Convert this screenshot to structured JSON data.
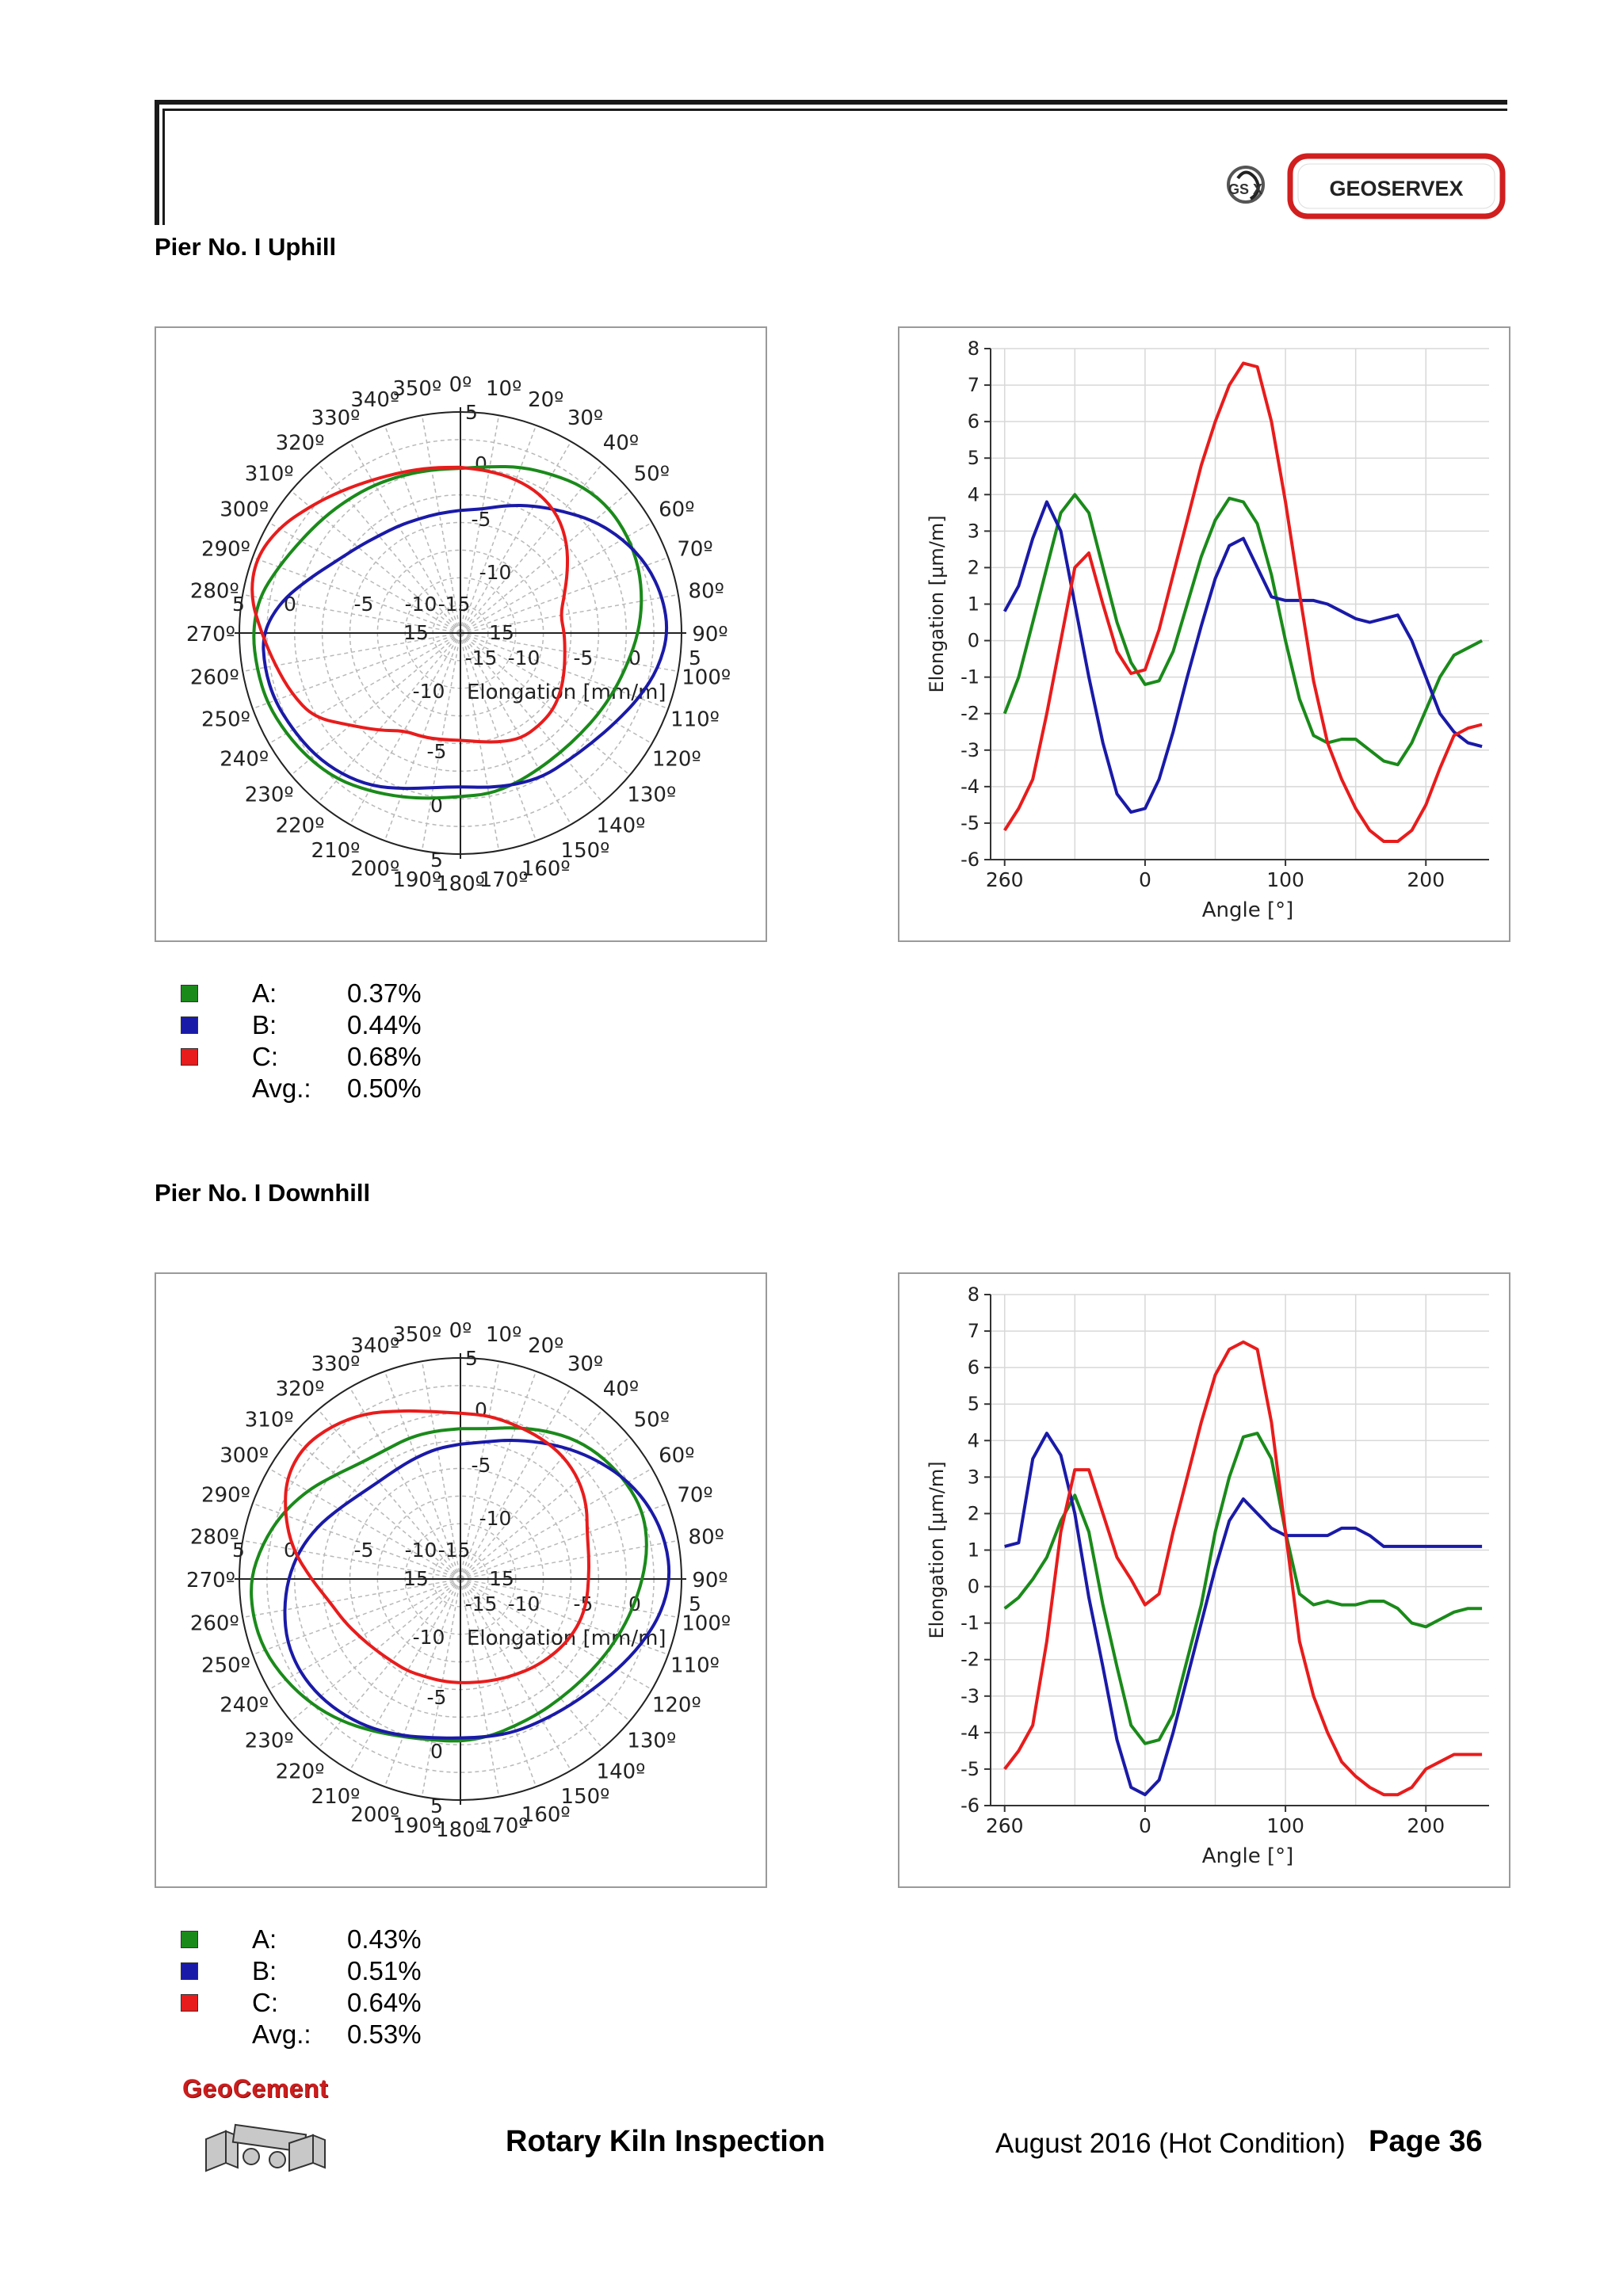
{
  "header": {
    "logo": {
      "mark_text": "GS X",
      "brand": "GEOSERVEX",
      "mark_icon": "geoservex-mark-icon",
      "border_color": "#d11f1f"
    }
  },
  "sections": [
    {
      "title": "Pier No. I Uphill",
      "legend": [
        {
          "label": "A:",
          "value": "0.37%",
          "color": "#1a8a1a"
        },
        {
          "label": "B:",
          "value": "0.44%",
          "color": "#1a1aa8"
        },
        {
          "label": "C:",
          "value": "0.68%",
          "color": "#e81c1c"
        },
        {
          "label": "Avg.:",
          "value": "0.50%",
          "color": ""
        }
      ]
    },
    {
      "title": "Pier No. I Downhill",
      "legend": [
        {
          "label": "A:",
          "value": "0.43%",
          "color": "#1a8a1a"
        },
        {
          "label": "B:",
          "value": "0.51%",
          "color": "#1a1aa8"
        },
        {
          "label": "C:",
          "value": "0.64%",
          "color": "#e81c1c"
        },
        {
          "label": "Avg.:",
          "value": "0.53%",
          "color": ""
        }
      ]
    }
  ],
  "chart_data": [
    {
      "type": "polar",
      "title": "Pier No. I Uphill - polar",
      "axis_label": "Elongation [mm/m]",
      "radial_ticks": [
        "15",
        "-15",
        "-10",
        "-5",
        "0",
        "5"
      ],
      "radial_range": [
        -15,
        5
      ],
      "angle_ticks_deg": [
        0,
        10,
        20,
        30,
        40,
        50,
        60,
        70,
        80,
        90,
        100,
        110,
        120,
        130,
        140,
        150,
        160,
        170,
        180,
        190,
        200,
        210,
        220,
        230,
        240,
        250,
        260,
        270,
        280,
        290,
        300,
        310,
        320,
        330,
        340,
        350
      ],
      "series": [
        {
          "name": "A",
          "color": "#1a8a1a",
          "r": [
            -0.1,
            0.3,
            1.0,
            1.6,
            2.3,
            2.6,
            2.5,
            2.2,
            1.7,
            1.1,
            0.4,
            -0.1,
            -0.5,
            -0.8,
            -0.9,
            -0.8,
            -0.5,
            -0.2,
            -0.2,
            0.2,
            0.8,
            1.5,
            2.3,
            2.8,
            3.2,
            3.6,
            3.7,
            3.8,
            3.5,
            2.5,
            1.7,
            1.2,
            0.8,
            0.5,
            0.2,
            0.0
          ]
        },
        {
          "name": "B",
          "color": "#1a1aa8",
          "r": [
            -3.9,
            -3.6,
            -2.7,
            -1.7,
            -0.6,
            0.8,
            2.0,
            3.0,
            3.6,
            3.8,
            3.2,
            2.2,
            1.2,
            0.5,
            0.1,
            0.0,
            -0.4,
            -0.8,
            -1.1,
            -0.8,
            0.0,
            1.0,
            1.7,
            2.2,
            2.5,
            2.9,
            3.0,
            2.9,
            1.5,
            -0.5,
            -2.0,
            -2.9,
            -3.5,
            -3.8,
            -4.0,
            -4.0
          ]
        },
        {
          "name": "C",
          "color": "#e81c1c",
          "r": [
            0.0,
            -0.1,
            -0.2,
            -0.5,
            -1.2,
            -2.4,
            -3.8,
            -5.0,
            -5.8,
            -5.6,
            -5.4,
            -5.0,
            -4.5,
            -4.1,
            -4.0,
            -4.0,
            -4.5,
            -5.0,
            -5.3,
            -5.2,
            -5.0,
            -4.8,
            -3.5,
            -2.0,
            0.3,
            1.2,
            2.0,
            3.0,
            4.3,
            4.7,
            4.0,
            2.8,
            1.8,
            1.0,
            0.5,
            0.2
          ]
        }
      ]
    },
    {
      "type": "line",
      "title": "Pier No. I Uphill - linear",
      "xlabel": "Angle [°]",
      "ylabel": "Elongation [µm/m]",
      "x_ticks": [
        "260",
        "0",
        "100",
        "200"
      ],
      "y_ticks": [
        8,
        7,
        6,
        5,
        4,
        3,
        2,
        1,
        0,
        -1,
        -2,
        -3,
        -4,
        -5,
        -6
      ],
      "ylim": [
        -6,
        8
      ],
      "x_unwrapped": [
        -100,
        -90,
        -80,
        -70,
        -60,
        -50,
        -40,
        -30,
        -20,
        -10,
        0,
        10,
        20,
        30,
        40,
        50,
        60,
        70,
        80,
        90,
        100,
        110,
        120,
        130,
        140,
        150,
        160,
        170,
        180,
        190,
        200,
        210,
        220,
        230,
        240
      ],
      "series": [
        {
          "name": "A",
          "color": "#1a8a1a",
          "values": [
            -2.0,
            -1.0,
            0.5,
            2.0,
            3.5,
            4.0,
            3.5,
            2.0,
            0.5,
            -0.6,
            -1.2,
            -1.1,
            -0.3,
            1.0,
            2.3,
            3.3,
            3.9,
            3.8,
            3.2,
            1.8,
            0.0,
            -1.6,
            -2.6,
            -2.8,
            -2.7,
            -2.7,
            -3.0,
            -3.3,
            -3.4,
            -2.8,
            -1.9,
            -1.0,
            -0.4,
            -0.2,
            0.0
          ]
        },
        {
          "name": "B",
          "color": "#1a1aa8",
          "values": [
            0.8,
            1.5,
            2.8,
            3.8,
            3.0,
            1.0,
            -1.0,
            -2.8,
            -4.2,
            -4.7,
            -4.6,
            -3.8,
            -2.5,
            -1.0,
            0.4,
            1.7,
            2.6,
            2.8,
            2.0,
            1.2,
            1.1,
            1.1,
            1.1,
            1.0,
            0.8,
            0.6,
            0.5,
            0.6,
            0.7,
            0.0,
            -1.0,
            -2.0,
            -2.5,
            -2.8,
            -2.9
          ]
        },
        {
          "name": "C",
          "color": "#e81c1c",
          "values": [
            -5.2,
            -4.6,
            -3.8,
            -2.0,
            0.0,
            2.0,
            2.4,
            1.0,
            -0.3,
            -0.9,
            -0.8,
            0.3,
            1.8,
            3.3,
            4.8,
            6.0,
            7.0,
            7.6,
            7.5,
            6.0,
            3.8,
            1.3,
            -1.1,
            -2.8,
            -3.8,
            -4.6,
            -5.2,
            -5.5,
            -5.5,
            -5.2,
            -4.5,
            -3.5,
            -2.6,
            -2.4,
            -2.3
          ]
        }
      ]
    },
    {
      "type": "polar",
      "title": "Pier No. I Downhill - polar",
      "axis_label": "Elongation [mm/m]",
      "radial_ticks": [
        "15",
        "-15",
        "-10",
        "-5",
        "0",
        "5"
      ],
      "radial_range": [
        -15,
        5
      ],
      "angle_ticks_deg": [
        0,
        10,
        20,
        30,
        40,
        50,
        60,
        70,
        80,
        90,
        100,
        110,
        120,
        130,
        140,
        150,
        160,
        170,
        180,
        190,
        200,
        210,
        220,
        230,
        240,
        250,
        260,
        270,
        280,
        290,
        300,
        310,
        320,
        330,
        340,
        350
      ],
      "series": [
        {
          "name": "A",
          "color": "#1a8a1a",
          "r": [
            -1.4,
            -1.2,
            -0.4,
            0.5,
            1.4,
            2.0,
            2.4,
            2.6,
            2.2,
            1.5,
            0.8,
            0.2,
            -0.3,
            -0.7,
            -0.9,
            -0.9,
            -0.8,
            -0.5,
            -0.3,
            -0.2,
            0.2,
            0.9,
            1.8,
            2.6,
            3.3,
            3.9,
            4.1,
            4.0,
            3.2,
            2.2,
            1.0,
            -0.3,
            -1.2,
            -1.5,
            -1.4,
            -1.4
          ]
        },
        {
          "name": "B",
          "color": "#1a1aa8",
          "r": [
            -2.8,
            -2.4,
            -1.6,
            -0.7,
            0.4,
            1.5,
            2.6,
            3.4,
            3.9,
            4.0,
            3.4,
            2.4,
            1.4,
            0.6,
            0.1,
            -0.2,
            -0.3,
            -0.5,
            -0.6,
            -0.4,
            0.1,
            0.7,
            1.2,
            1.6,
            1.8,
            1.7,
            1.2,
            0.6,
            -0.2,
            -1.2,
            -2.3,
            -3.1,
            -3.5,
            -3.5,
            -3.3,
            -3.0
          ]
        },
        {
          "name": "C",
          "color": "#e81c1c",
          "r": [
            0.0,
            0.0,
            -0.2,
            -0.3,
            -0.5,
            -1.0,
            -1.8,
            -2.8,
            -3.2,
            -3.4,
            -3.4,
            -3.5,
            -3.8,
            -4.2,
            -4.6,
            -5.0,
            -5.3,
            -5.5,
            -5.6,
            -5.6,
            -5.6,
            -5.4,
            -5.3,
            -5.0,
            -4.5,
            -3.8,
            -3.0,
            -1.5,
            0.4,
            1.9,
            3.2,
            3.6,
            3.1,
            2.3,
            1.2,
            0.4
          ]
        }
      ]
    },
    {
      "type": "line",
      "title": "Pier No. I Downhill - linear",
      "xlabel": "Angle [°]",
      "ylabel": "Elongation [µm/m]",
      "x_ticks": [
        "260",
        "0",
        "100",
        "200"
      ],
      "y_ticks": [
        8,
        7,
        6,
        5,
        4,
        3,
        2,
        1,
        0,
        -1,
        -2,
        -3,
        -4,
        -5,
        -6
      ],
      "ylim": [
        -6,
        8
      ],
      "x_unwrapped": [
        -100,
        -90,
        -80,
        -70,
        -60,
        -50,
        -40,
        -30,
        -20,
        -10,
        0,
        10,
        20,
        30,
        40,
        50,
        60,
        70,
        80,
        90,
        100,
        110,
        120,
        130,
        140,
        150,
        160,
        170,
        180,
        190,
        200,
        210,
        220,
        230,
        240
      ],
      "series": [
        {
          "name": "A",
          "color": "#1a8a1a",
          "values": [
            -0.6,
            -0.3,
            0.2,
            0.8,
            1.8,
            2.5,
            1.5,
            -0.5,
            -2.2,
            -3.8,
            -4.3,
            -4.2,
            -3.5,
            -2.0,
            -0.5,
            1.5,
            3.0,
            4.1,
            4.2,
            3.5,
            1.5,
            -0.2,
            -0.5,
            -0.4,
            -0.5,
            -0.5,
            -0.4,
            -0.4,
            -0.6,
            -1.0,
            -1.1,
            -0.9,
            -0.7,
            -0.6,
            -0.6
          ]
        },
        {
          "name": "B",
          "color": "#1a1aa8",
          "values": [
            1.1,
            1.2,
            3.5,
            4.2,
            3.6,
            2.0,
            -0.3,
            -2.2,
            -4.2,
            -5.5,
            -5.7,
            -5.3,
            -4.0,
            -2.5,
            -1.0,
            0.5,
            1.8,
            2.4,
            2.0,
            1.6,
            1.4,
            1.4,
            1.4,
            1.4,
            1.6,
            1.6,
            1.4,
            1.1,
            1.1,
            1.1,
            1.1,
            1.1,
            1.1,
            1.1,
            1.1
          ]
        },
        {
          "name": "C",
          "color": "#e81c1c",
          "values": [
            -5.0,
            -4.5,
            -3.8,
            -1.5,
            1.5,
            3.2,
            3.2,
            2.0,
            0.8,
            0.2,
            -0.5,
            -0.2,
            1.5,
            3.0,
            4.5,
            5.8,
            6.5,
            6.7,
            6.5,
            4.5,
            1.5,
            -1.5,
            -3.0,
            -4.0,
            -4.8,
            -5.2,
            -5.5,
            -5.7,
            -5.7,
            -5.5,
            -5.0,
            -4.8,
            -4.6,
            -4.6,
            -4.6
          ]
        }
      ]
    }
  ],
  "footer": {
    "company": "GeoCement",
    "title": "Rotary Kiln Inspection",
    "date": "August 2016 (Hot Condition)",
    "page": "Page 36"
  }
}
